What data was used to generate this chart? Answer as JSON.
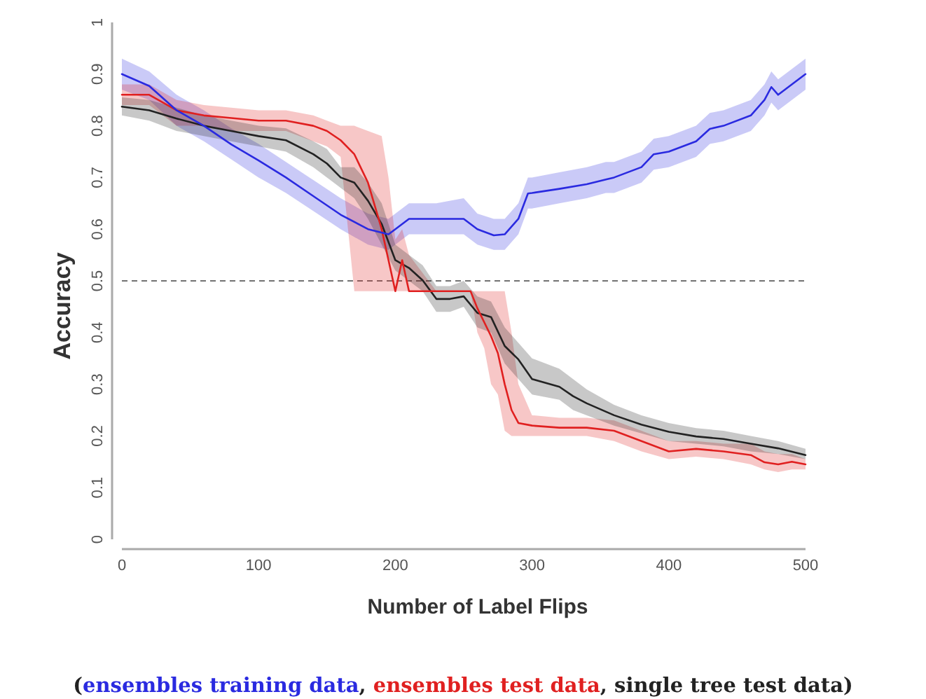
{
  "chart_data": {
    "type": "line",
    "xlabel": "Number of Label Flips",
    "ylabel": "Accuracy",
    "xlim": [
      0,
      500
    ],
    "xticks": [
      0,
      100,
      200,
      300,
      400,
      500
    ],
    "ylim": [
      0,
      1
    ],
    "yticks": [
      0,
      0.1,
      0.2,
      0.3,
      0.4,
      0.5,
      0.6,
      0.7,
      0.8,
      0.9,
      1
    ],
    "annotations": [
      "(",
      ", ",
      ", ",
      ")"
    ],
    "grid": false,
    "legend": "bottom",
    "marker": "none",
    "line_style": "solid",
    "ref_lines": [
      {
        "axis": "y",
        "value": 0.5,
        "color": "#444444",
        "line_style": "dashed"
      }
    ],
    "series": [
      {
        "name": "ensembles training data",
        "color": "#2a2ae0",
        "x": [
          0,
          20,
          40,
          60,
          80,
          100,
          120,
          140,
          160,
          180,
          195,
          200,
          210,
          230,
          250,
          260,
          272,
          280,
          290,
          297,
          300,
          320,
          340,
          354,
          360,
          380,
          389,
          400,
          420,
          430,
          440,
          460,
          470,
          475,
          480,
          490,
          500
        ],
        "values": [
          0.9,
          0.877,
          0.83,
          0.8,
          0.764,
          0.733,
          0.7,
          0.664,
          0.628,
          0.6,
          0.59,
          0.6,
          0.62,
          0.62,
          0.62,
          0.6,
          0.588,
          0.59,
          0.62,
          0.669,
          0.67,
          0.678,
          0.687,
          0.696,
          0.7,
          0.72,
          0.745,
          0.75,
          0.77,
          0.794,
          0.8,
          0.82,
          0.85,
          0.875,
          0.86,
          0.88,
          0.9
        ],
        "lower": [
          0.87,
          0.85,
          0.8,
          0.77,
          0.735,
          0.7,
          0.67,
          0.635,
          0.6,
          0.57,
          0.56,
          0.57,
          0.59,
          0.59,
          0.59,
          0.57,
          0.56,
          0.56,
          0.59,
          0.64,
          0.64,
          0.65,
          0.66,
          0.67,
          0.67,
          0.69,
          0.715,
          0.72,
          0.74,
          0.765,
          0.77,
          0.79,
          0.82,
          0.845,
          0.83,
          0.85,
          0.87
        ],
        "upper": [
          0.93,
          0.905,
          0.86,
          0.83,
          0.795,
          0.765,
          0.73,
          0.695,
          0.66,
          0.63,
          0.62,
          0.63,
          0.65,
          0.65,
          0.66,
          0.63,
          0.62,
          0.62,
          0.65,
          0.7,
          0.7,
          0.71,
          0.72,
          0.73,
          0.73,
          0.75,
          0.775,
          0.78,
          0.8,
          0.825,
          0.83,
          0.85,
          0.88,
          0.905,
          0.89,
          0.91,
          0.93
        ]
      },
      {
        "name": "ensembles test data",
        "color": "#e02020",
        "x": [
          0,
          20,
          40,
          60,
          80,
          100,
          120,
          140,
          150,
          160,
          170,
          180,
          190,
          195,
          200,
          205,
          210,
          230,
          255,
          260,
          265,
          270,
          275,
          280,
          285,
          290,
          300,
          320,
          340,
          360,
          380,
          400,
          420,
          440,
          460,
          470,
          480,
          490,
          500
        ],
        "values": [
          0.86,
          0.86,
          0.83,
          0.82,
          0.815,
          0.81,
          0.81,
          0.8,
          0.79,
          0.772,
          0.745,
          0.69,
          0.6,
          0.54,
          0.48,
          0.54,
          0.48,
          0.48,
          0.48,
          0.447,
          0.42,
          0.393,
          0.36,
          0.3,
          0.25,
          0.225,
          0.22,
          0.216,
          0.216,
          0.21,
          0.19,
          0.17,
          0.175,
          0.17,
          0.163,
          0.149,
          0.145,
          0.15,
          0.145
        ],
        "lower": [
          0.84,
          0.84,
          0.8,
          0.8,
          0.79,
          0.79,
          0.79,
          0.77,
          0.76,
          0.74,
          0.48,
          0.48,
          0.48,
          0.48,
          0.48,
          0.48,
          0.48,
          0.48,
          0.48,
          0.4,
          0.37,
          0.3,
          0.28,
          0.21,
          0.2,
          0.2,
          0.2,
          0.2,
          0.2,
          0.19,
          0.17,
          0.155,
          0.16,
          0.155,
          0.145,
          0.135,
          0.13,
          0.135,
          0.135
        ],
        "upper": [
          0.88,
          0.88,
          0.85,
          0.84,
          0.835,
          0.83,
          0.83,
          0.82,
          0.81,
          0.8,
          0.8,
          0.79,
          0.78,
          0.7,
          0.58,
          0.6,
          0.55,
          0.48,
          0.48,
          0.48,
          0.48,
          0.48,
          0.48,
          0.48,
          0.4,
          0.3,
          0.24,
          0.235,
          0.235,
          0.23,
          0.21,
          0.19,
          0.19,
          0.185,
          0.185,
          0.17,
          0.165,
          0.165,
          0.155
        ]
      },
      {
        "name": "single tree test data",
        "color": "#222222",
        "x": [
          0,
          20,
          40,
          60,
          80,
          100,
          120,
          140,
          150,
          160,
          170,
          180,
          190,
          200,
          210,
          220,
          230,
          240,
          250,
          260,
          270,
          280,
          290,
          300,
          320,
          330,
          340,
          360,
          380,
          400,
          420,
          440,
          460,
          480,
          500
        ],
        "values": [
          0.837,
          0.83,
          0.814,
          0.8,
          0.79,
          0.78,
          0.772,
          0.745,
          0.727,
          0.7,
          0.69,
          0.655,
          0.61,
          0.54,
          0.525,
          0.501,
          0.465,
          0.465,
          0.47,
          0.438,
          0.43,
          0.374,
          0.348,
          0.31,
          0.295,
          0.277,
          0.263,
          0.24,
          0.222,
          0.208,
          0.199,
          0.194,
          0.185,
          0.176,
          0.163
        ],
        "lower": [
          0.82,
          0.81,
          0.79,
          0.78,
          0.77,
          0.76,
          0.75,
          0.72,
          0.7,
          0.68,
          0.66,
          0.62,
          0.57,
          0.52,
          0.5,
          0.48,
          0.44,
          0.44,
          0.45,
          0.41,
          0.4,
          0.34,
          0.31,
          0.28,
          0.27,
          0.25,
          0.24,
          0.22,
          0.205,
          0.19,
          0.185,
          0.18,
          0.17,
          0.165,
          0.155
        ],
        "upper": [
          0.855,
          0.85,
          0.835,
          0.82,
          0.81,
          0.8,
          0.795,
          0.77,
          0.755,
          0.72,
          0.72,
          0.69,
          0.65,
          0.57,
          0.55,
          0.53,
          0.49,
          0.49,
          0.5,
          0.47,
          0.46,
          0.41,
          0.38,
          0.35,
          0.33,
          0.31,
          0.29,
          0.26,
          0.24,
          0.225,
          0.215,
          0.21,
          0.2,
          0.19,
          0.175
        ]
      }
    ]
  }
}
